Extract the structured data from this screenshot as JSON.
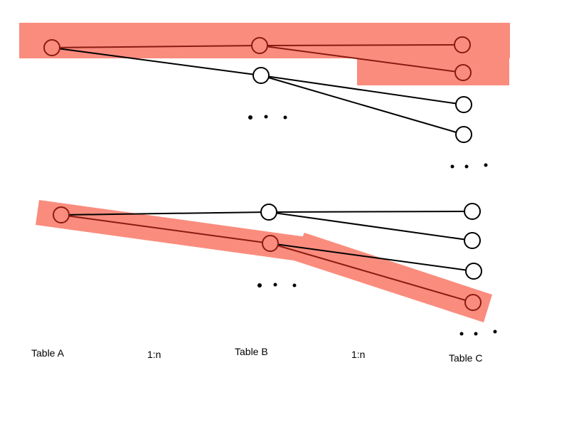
{
  "colors": {
    "highlight": "#fa8c7e",
    "highlighted_stroke": "#8b1a10",
    "normal_stroke": "#000000",
    "node_fill_normal": "#ffffff"
  },
  "labels": {
    "table_a": "Table A",
    "relation_ab": "1:n",
    "table_b": "Table B",
    "relation_bc": "1:n",
    "table_c": "Table C"
  },
  "ellipsis": "…",
  "example_top": {
    "nodes": [
      {
        "id": "a1",
        "column": "Table A",
        "highlighted": true
      },
      {
        "id": "b1",
        "column": "Table B",
        "highlighted": true
      },
      {
        "id": "b2",
        "column": "Table B",
        "highlighted": false
      },
      {
        "id": "c1",
        "column": "Table C",
        "highlighted": true
      },
      {
        "id": "c2",
        "column": "Table C",
        "highlighted": true
      },
      {
        "id": "c3",
        "column": "Table C",
        "highlighted": false
      },
      {
        "id": "c4",
        "column": "Table C",
        "highlighted": false
      }
    ],
    "edges": [
      {
        "from": "a1",
        "to": "b1",
        "highlighted": true
      },
      {
        "from": "a1",
        "to": "b2",
        "highlighted": false
      },
      {
        "from": "b1",
        "to": "c1",
        "highlighted": true
      },
      {
        "from": "b1",
        "to": "c2",
        "highlighted": true
      },
      {
        "from": "b2",
        "to": "c3",
        "highlighted": false
      },
      {
        "from": "b2",
        "to": "c4",
        "highlighted": false
      }
    ]
  },
  "example_bottom": {
    "nodes": [
      {
        "id": "a1",
        "column": "Table A",
        "highlighted": true
      },
      {
        "id": "b1",
        "column": "Table B",
        "highlighted": false
      },
      {
        "id": "b2",
        "column": "Table B",
        "highlighted": true
      },
      {
        "id": "c1",
        "column": "Table C",
        "highlighted": false
      },
      {
        "id": "c2",
        "column": "Table C",
        "highlighted": false
      },
      {
        "id": "c3",
        "column": "Table C",
        "highlighted": false
      },
      {
        "id": "c4",
        "column": "Table C",
        "highlighted": true
      }
    ],
    "edges": [
      {
        "from": "a1",
        "to": "b1",
        "highlighted": false
      },
      {
        "from": "a1",
        "to": "b2",
        "highlighted": true
      },
      {
        "from": "b1",
        "to": "c1",
        "highlighted": false
      },
      {
        "from": "b1",
        "to": "c2",
        "highlighted": false
      },
      {
        "from": "b2",
        "to": "c3",
        "highlighted": false
      },
      {
        "from": "b2",
        "to": "c4",
        "highlighted": true
      }
    ]
  }
}
